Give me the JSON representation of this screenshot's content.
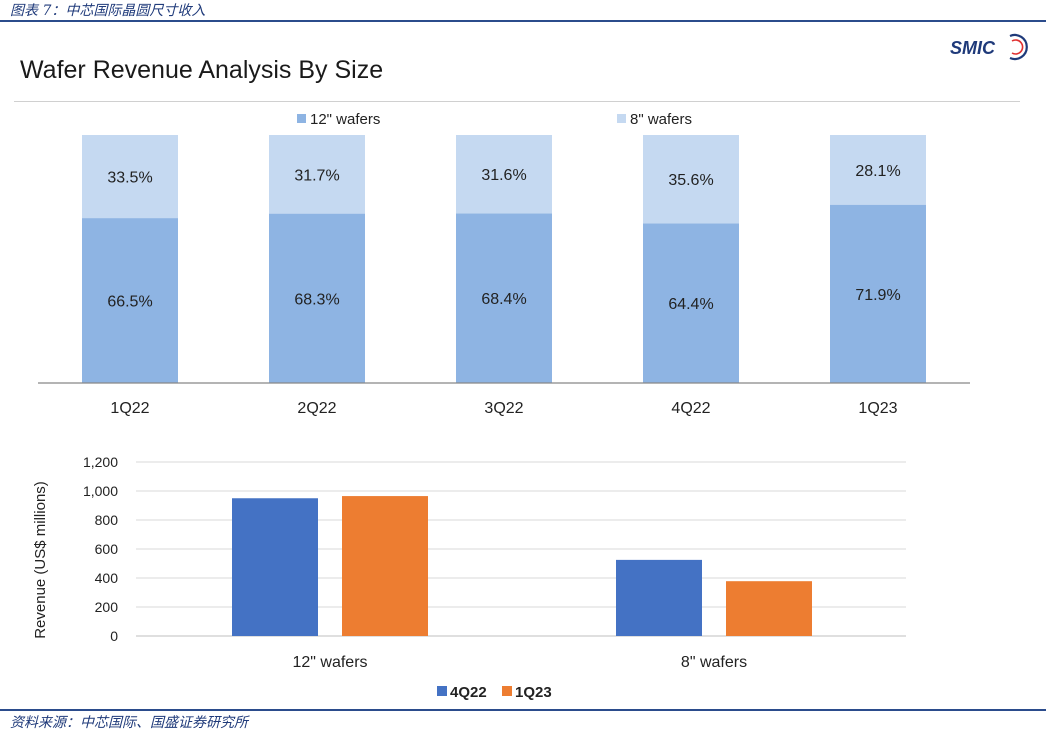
{
  "figure_caption": "图表 7：中芯国际晶圆尺寸收入",
  "source_note": "资料来源：中芯国际、国盛证券研究所",
  "slide_title": "Wafer Revenue Analysis By Size",
  "logo_text": "SMIC",
  "colors": {
    "wafer12": "#8eb4e3",
    "wafer8": "#c5d9f1",
    "q4_22": "#4472c4",
    "q1_23": "#ed7d31",
    "brand": "#1f3a7a"
  },
  "chart_data": [
    {
      "type": "bar",
      "stacked": true,
      "percent": true,
      "categories": [
        "1Q22",
        "2Q22",
        "3Q22",
        "4Q22",
        "1Q23"
      ],
      "series": [
        {
          "name": "12\" wafers",
          "values": [
            66.5,
            68.3,
            68.4,
            64.4,
            71.9
          ],
          "labels": [
            "66.5%",
            "68.3%",
            "68.4%",
            "64.4%",
            "71.9%"
          ]
        },
        {
          "name": "8\" wafers",
          "values": [
            33.5,
            31.7,
            31.6,
            35.6,
            28.1
          ],
          "labels": [
            "33.5%",
            "31.7%",
            "31.6%",
            "35.6%",
            "28.1%"
          ]
        }
      ],
      "legend_position": "top",
      "grid": false
    },
    {
      "type": "bar",
      "categories": [
        "12\" wafers",
        "8\" wafers"
      ],
      "series": [
        {
          "name": "4Q22",
          "values": [
            950,
            525
          ]
        },
        {
          "name": "1Q23",
          "values": [
            965,
            378
          ]
        }
      ],
      "ylabel": "Revenue (US$  millions)",
      "ylim": [
        0,
        1200
      ],
      "yticks": [
        0,
        200,
        400,
        600,
        800,
        1000,
        1200
      ],
      "ytick_labels": [
        "0",
        "200",
        "400",
        "600",
        "800",
        "1,000",
        "1,200"
      ],
      "legend_position": "bottom",
      "grid": true
    }
  ]
}
